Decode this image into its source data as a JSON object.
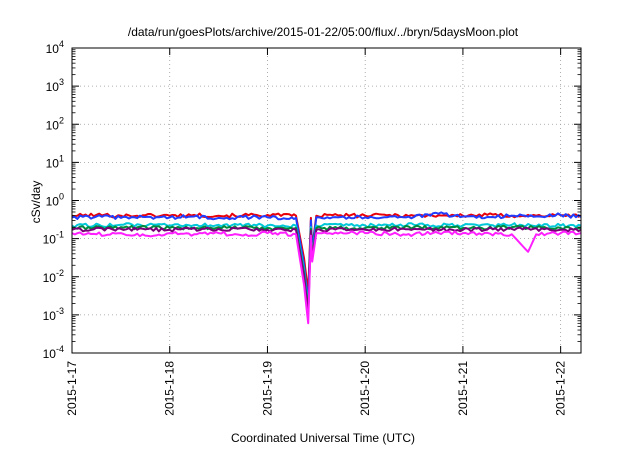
{
  "chart_data": {
    "type": "line",
    "title": "/data/run/goesPlots/archive/2015-01-22/05:00/flux/../bryn/5daysMoon.plot",
    "xlabel": "Coordinated Universal Time (UTC)",
    "ylabel": "cSv/day",
    "xlim": [
      "2015-01-17",
      "2015-01-22 05:00"
    ],
    "ylim": [
      0.0001,
      10000
    ],
    "yscale": "log",
    "grid": true,
    "x_ticks": [
      "2015-1-17",
      "2015-1-18",
      "2015-1-19",
      "2015-1-20",
      "2015-1-21",
      "2015-1-22"
    ],
    "y_ticks": [
      {
        "value": 0.0001,
        "base": "10",
        "exp": "-4"
      },
      {
        "value": 0.001,
        "base": "10",
        "exp": "-3"
      },
      {
        "value": 0.01,
        "base": "10",
        "exp": "-2"
      },
      {
        "value": 0.1,
        "base": "10",
        "exp": "-1"
      },
      {
        "value": 1,
        "base": "10",
        "exp": "0"
      },
      {
        "value": 10,
        "base": "10",
        "exp": "1"
      },
      {
        "value": 100,
        "base": "10",
        "exp": "2"
      },
      {
        "value": 1000,
        "base": "10",
        "exp": "3"
      },
      {
        "value": 10000,
        "base": "10",
        "exp": "4"
      }
    ],
    "series": [
      {
        "color": "#e8000b",
        "values": [
          [
            "2015-01-17 00:00",
            0.4
          ],
          [
            "2015-01-17 06:00",
            0.42
          ],
          [
            "2015-01-17 12:00",
            0.4
          ],
          [
            "2015-01-17 18:00",
            0.41
          ],
          [
            "2015-01-18 00:00",
            0.4
          ],
          [
            "2015-01-18 06:00",
            0.42
          ],
          [
            "2015-01-18 12:00",
            0.4
          ],
          [
            "2015-01-18 18:00",
            0.41
          ],
          [
            "2015-01-19 00:00",
            0.42
          ],
          [
            "2015-01-19 06:00",
            0.4
          ],
          [
            "2015-01-19 07:00",
            0.4
          ],
          [
            "2015-01-19 09:00",
            0.03
          ],
          [
            "2015-01-19 10:00",
            0.004
          ],
          [
            "2015-01-19 10:40",
            0.35
          ],
          [
            "2015-01-19 11:00",
            0.06
          ],
          [
            "2015-01-19 12:00",
            0.4
          ],
          [
            "2015-01-19 18:00",
            0.41
          ],
          [
            "2015-01-20 00:00",
            0.4
          ],
          [
            "2015-01-20 06:00",
            0.42
          ],
          [
            "2015-01-20 12:00",
            0.4
          ],
          [
            "2015-01-20 18:00",
            0.41
          ],
          [
            "2015-01-21 00:00",
            0.4
          ],
          [
            "2015-01-21 06:00",
            0.42
          ],
          [
            "2015-01-21 12:00",
            0.4
          ],
          [
            "2015-01-21 18:00",
            0.4
          ],
          [
            "2015-01-22 00:00",
            0.41
          ],
          [
            "2015-01-22 05:00",
            0.4
          ]
        ]
      },
      {
        "color": "#1f3cff",
        "values": [
          [
            "2015-01-17 00:00",
            0.36
          ],
          [
            "2015-01-17 06:00",
            0.38
          ],
          [
            "2015-01-17 12:00",
            0.35
          ],
          [
            "2015-01-17 18:00",
            0.37
          ],
          [
            "2015-01-18 00:00",
            0.36
          ],
          [
            "2015-01-18 06:00",
            0.38
          ],
          [
            "2015-01-18 12:00",
            0.35
          ],
          [
            "2015-01-18 18:00",
            0.37
          ],
          [
            "2015-01-19 00:00",
            0.36
          ],
          [
            "2015-01-19 06:00",
            0.36
          ],
          [
            "2015-01-19 07:00",
            0.35
          ],
          [
            "2015-01-19 09:00",
            0.02
          ],
          [
            "2015-01-19 10:00",
            0.002
          ],
          [
            "2015-01-19 10:40",
            0.3
          ],
          [
            "2015-01-19 11:00",
            0.05
          ],
          [
            "2015-01-19 12:00",
            0.36
          ],
          [
            "2015-01-19 18:00",
            0.37
          ],
          [
            "2015-01-20 00:00",
            0.36
          ],
          [
            "2015-01-20 06:00",
            0.38
          ],
          [
            "2015-01-20 12:00",
            0.37
          ],
          [
            "2015-01-20 18:00",
            0.45
          ],
          [
            "2015-01-21 00:00",
            0.38
          ],
          [
            "2015-01-21 06:00",
            0.37
          ],
          [
            "2015-01-21 12:00",
            0.4
          ],
          [
            "2015-01-21 18:00",
            0.38
          ],
          [
            "2015-01-22 00:00",
            0.42
          ],
          [
            "2015-01-22 05:00",
            0.37
          ]
        ]
      },
      {
        "color": "#00c8d8",
        "values": [
          [
            "2015-01-17 00:00",
            0.22
          ],
          [
            "2015-01-17 12:00",
            0.23
          ],
          [
            "2015-01-18 00:00",
            0.22
          ],
          [
            "2015-01-18 12:00",
            0.23
          ],
          [
            "2015-01-19 00:00",
            0.22
          ],
          [
            "2015-01-19 07:00",
            0.22
          ],
          [
            "2015-01-19 09:00",
            0.015
          ],
          [
            "2015-01-19 10:00",
            0.0015
          ],
          [
            "2015-01-19 10:40",
            0.2
          ],
          [
            "2015-01-19 11:00",
            0.04
          ],
          [
            "2015-01-19 12:00",
            0.22
          ],
          [
            "2015-01-20 00:00",
            0.22
          ],
          [
            "2015-01-20 12:00",
            0.23
          ],
          [
            "2015-01-21 00:00",
            0.22
          ],
          [
            "2015-01-21 12:00",
            0.23
          ],
          [
            "2015-01-22 00:00",
            0.22
          ],
          [
            "2015-01-22 05:00",
            0.22
          ]
        ]
      },
      {
        "color": "#008a3c",
        "values": [
          [
            "2015-01-17 00:00",
            0.19
          ],
          [
            "2015-01-17 12:00",
            0.2
          ],
          [
            "2015-01-18 00:00",
            0.19
          ],
          [
            "2015-01-18 12:00",
            0.2
          ],
          [
            "2015-01-19 00:00",
            0.19
          ],
          [
            "2015-01-19 07:00",
            0.19
          ],
          [
            "2015-01-19 09:00",
            0.012
          ],
          [
            "2015-01-19 10:00",
            0.0012
          ],
          [
            "2015-01-19 10:40",
            0.18
          ],
          [
            "2015-01-19 11:00",
            0.035
          ],
          [
            "2015-01-19 12:00",
            0.19
          ],
          [
            "2015-01-20 00:00",
            0.19
          ],
          [
            "2015-01-20 12:00",
            0.2
          ],
          [
            "2015-01-21 00:00",
            0.19
          ],
          [
            "2015-01-21 12:00",
            0.2
          ],
          [
            "2015-01-22 00:00",
            0.19
          ],
          [
            "2015-01-22 05:00",
            0.19
          ]
        ]
      },
      {
        "color": "#7a0077",
        "values": [
          [
            "2015-01-17 00:00",
            0.17
          ],
          [
            "2015-01-17 12:00",
            0.18
          ],
          [
            "2015-01-18 00:00",
            0.17
          ],
          [
            "2015-01-18 12:00",
            0.18
          ],
          [
            "2015-01-19 00:00",
            0.17
          ],
          [
            "2015-01-19 07:00",
            0.17
          ],
          [
            "2015-01-19 09:00",
            0.01
          ],
          [
            "2015-01-19 10:00",
            0.001
          ],
          [
            "2015-01-19 10:40",
            0.16
          ],
          [
            "2015-01-19 11:00",
            0.03
          ],
          [
            "2015-01-19 12:00",
            0.17
          ],
          [
            "2015-01-20 00:00",
            0.17
          ],
          [
            "2015-01-20 12:00",
            0.18
          ],
          [
            "2015-01-21 00:00",
            0.17
          ],
          [
            "2015-01-21 12:00",
            0.18
          ],
          [
            "2015-01-22 00:00",
            0.17
          ],
          [
            "2015-01-22 05:00",
            0.17
          ]
        ]
      },
      {
        "color": "#ff1fff",
        "values": [
          [
            "2015-01-17 00:00",
            0.14
          ],
          [
            "2015-01-17 06:00",
            0.13
          ],
          [
            "2015-01-17 12:00",
            0.14
          ],
          [
            "2015-01-17 18:00",
            0.12
          ],
          [
            "2015-01-18 00:00",
            0.14
          ],
          [
            "2015-01-18 06:00",
            0.13
          ],
          [
            "2015-01-18 12:00",
            0.14
          ],
          [
            "2015-01-18 18:00",
            0.12
          ],
          [
            "2015-01-19 00:00",
            0.14
          ],
          [
            "2015-01-19 07:00",
            0.13
          ],
          [
            "2015-01-19 09:00",
            0.006
          ],
          [
            "2015-01-19 10:00",
            0.0006
          ],
          [
            "2015-01-19 10:40",
            0.12
          ],
          [
            "2015-01-19 11:00",
            0.025
          ],
          [
            "2015-01-19 12:00",
            0.14
          ],
          [
            "2015-01-20 00:00",
            0.14
          ],
          [
            "2015-01-20 12:00",
            0.13
          ],
          [
            "2015-01-20 18:00",
            0.14
          ],
          [
            "2015-01-21 00:00",
            0.14
          ],
          [
            "2015-01-21 12:00",
            0.13
          ],
          [
            "2015-01-21 16:00",
            0.045
          ],
          [
            "2015-01-21 18:00",
            0.13
          ],
          [
            "2015-01-22 00:00",
            0.14
          ],
          [
            "2015-01-22 05:00",
            0.14
          ]
        ]
      }
    ]
  }
}
